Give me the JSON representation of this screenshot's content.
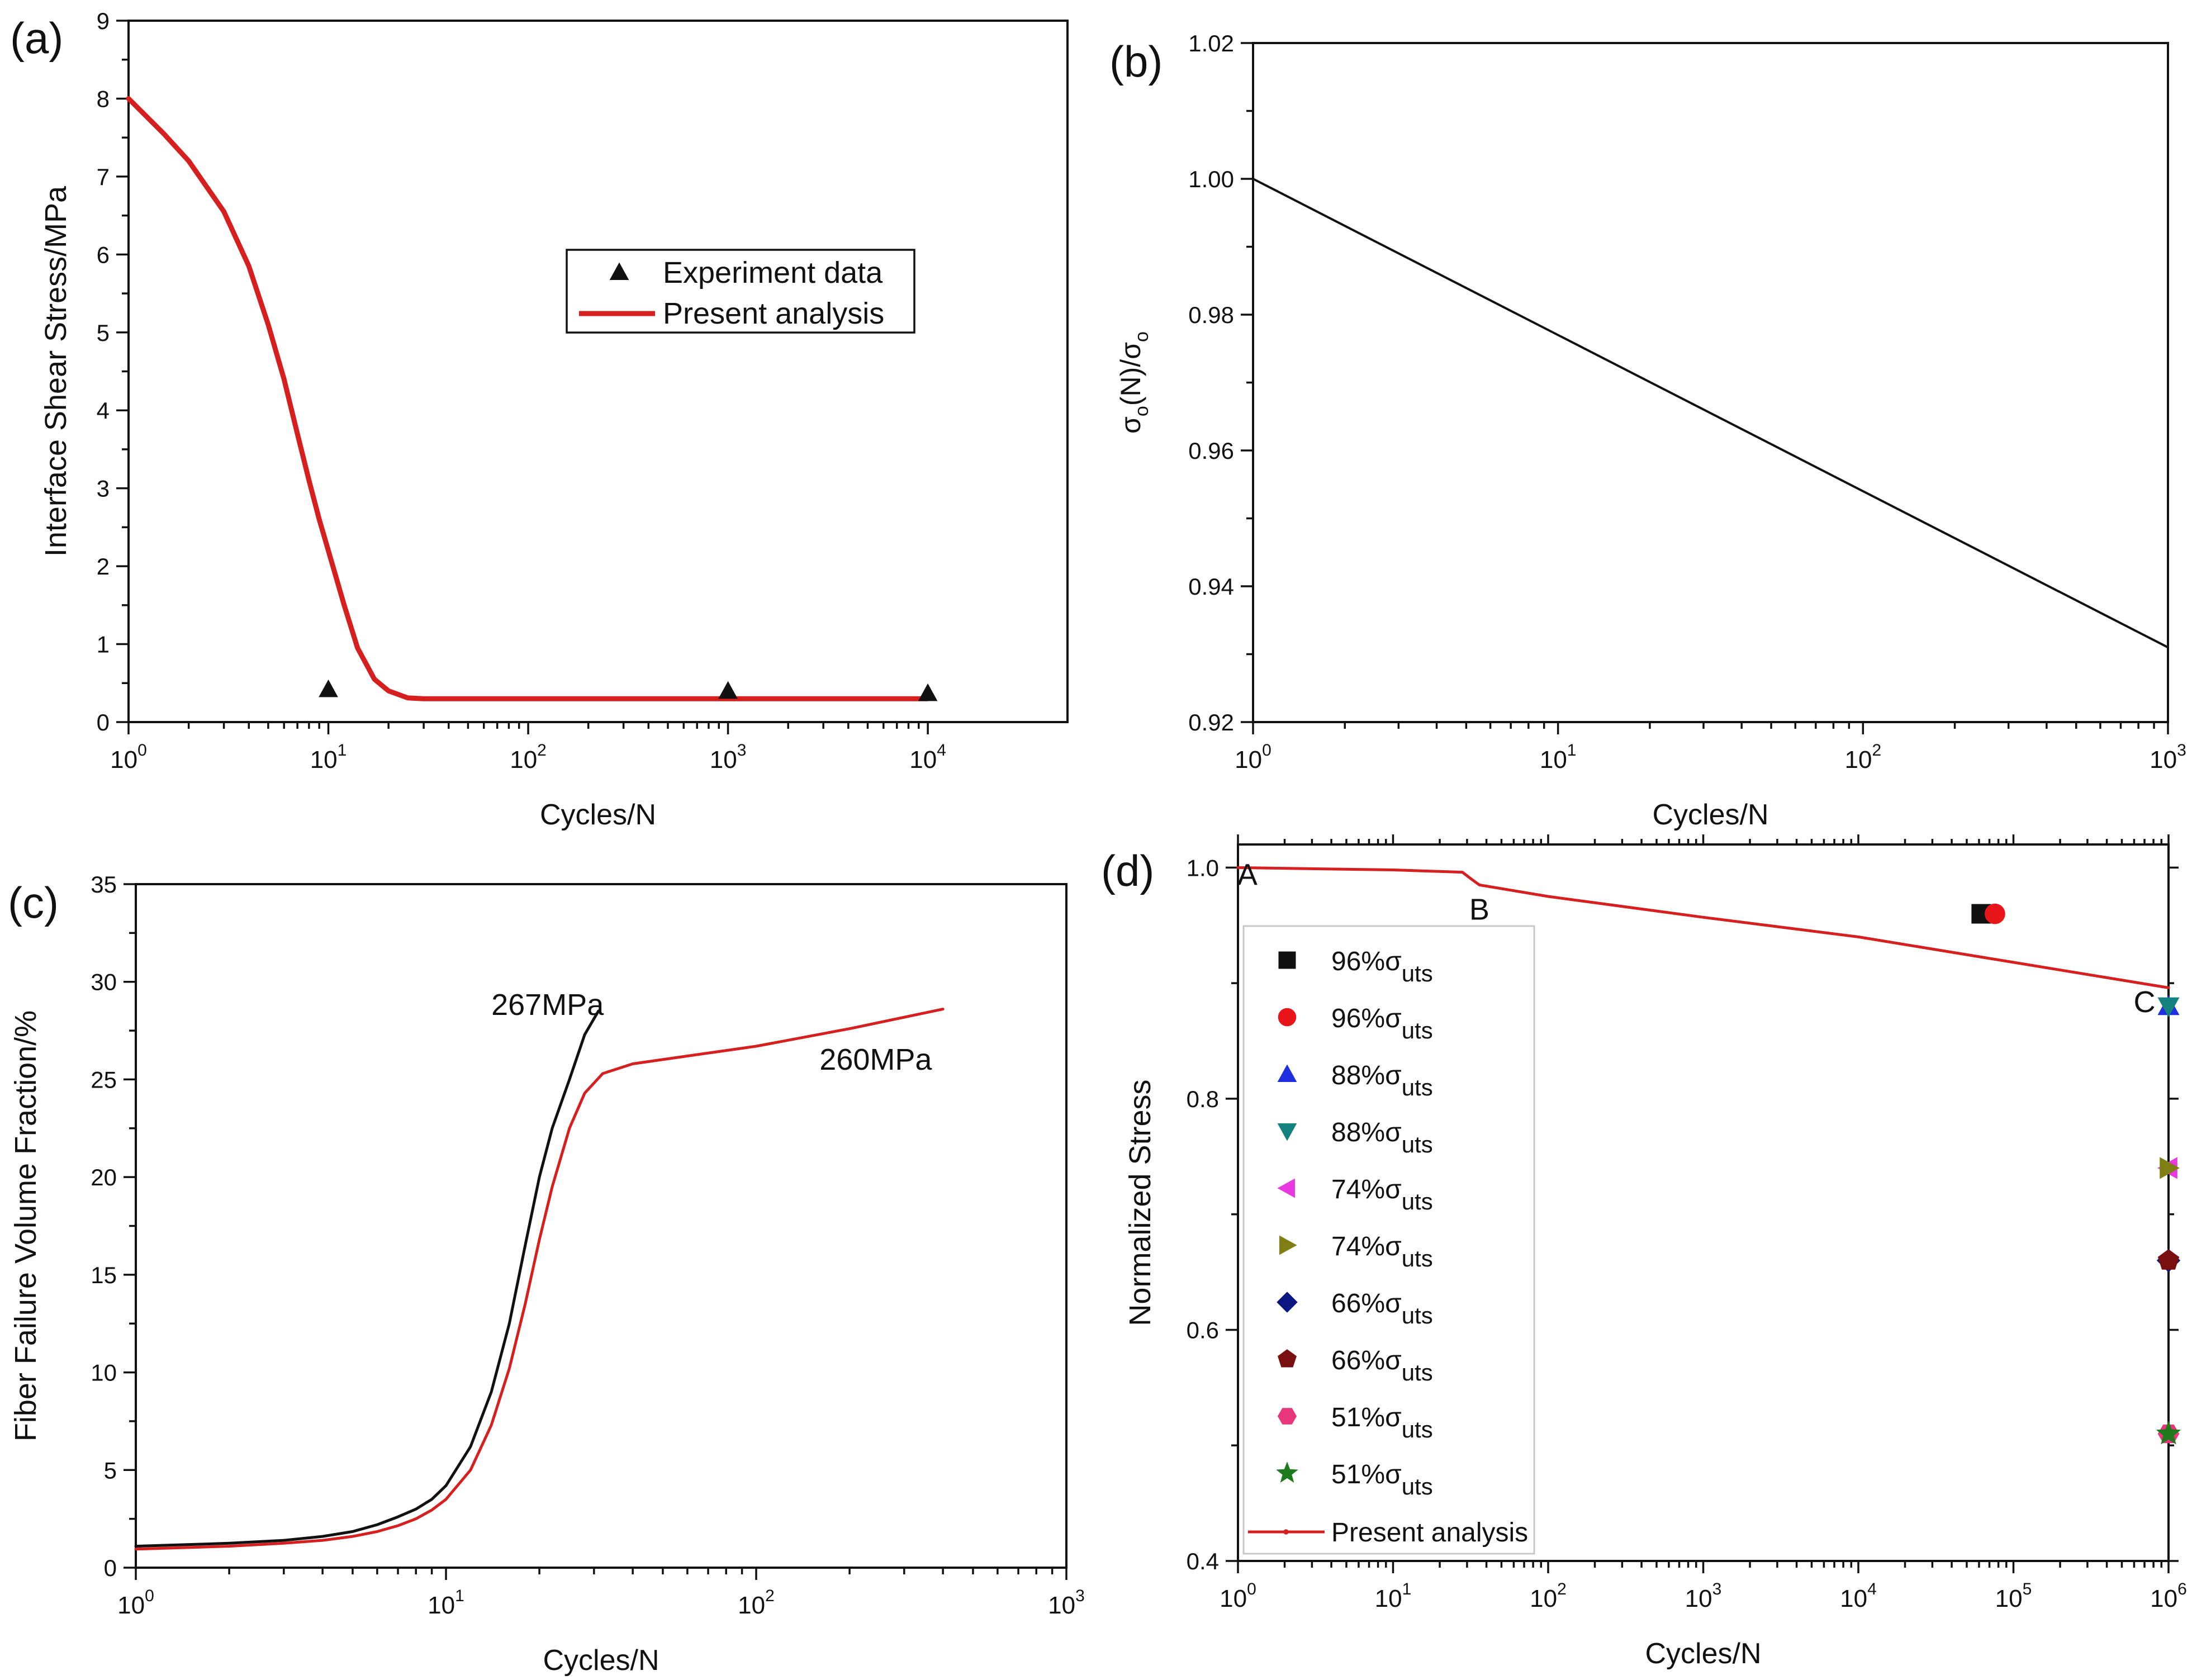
{
  "chart_data": [
    {
      "id": "a",
      "type": "line",
      "panel_label": "(a)",
      "title": "",
      "xlabel": "Cycles/N",
      "ylabel": "Interface Shear Stress/MPa",
      "xscale": "log",
      "xlim": [
        1,
        50000
      ],
      "ylim": [
        0,
        9
      ],
      "xticks": [
        1,
        10,
        100,
        1000,
        10000
      ],
      "xtick_exponents": [
        "0",
        "1",
        "2",
        "3",
        "4"
      ],
      "yticks": [
        0,
        1,
        2,
        3,
        4,
        5,
        6,
        7,
        8,
        9
      ],
      "series": [
        {
          "name": "Experiment data",
          "kind": "scatter",
          "marker": "triangle-up",
          "color": "#111111",
          "x": [
            10,
            1000,
            10000
          ],
          "y": [
            0.42,
            0.4,
            0.37
          ]
        },
        {
          "name": "Present analysis",
          "kind": "line",
          "color": "#d62020",
          "x": [
            1,
            1.5,
            2,
            3,
            4,
            5,
            6,
            7,
            8,
            9,
            10,
            12,
            14,
            17,
            20,
            25,
            30,
            40,
            60,
            100,
            1000,
            10000
          ],
          "y": [
            8.0,
            7.55,
            7.2,
            6.55,
            5.85,
            5.1,
            4.4,
            3.7,
            3.1,
            2.6,
            2.2,
            1.5,
            0.95,
            0.55,
            0.4,
            0.31,
            0.3,
            0.3,
            0.3,
            0.3,
            0.3,
            0.3
          ]
        }
      ],
      "legend": {
        "position": "center-right",
        "entries": [
          "Experiment data",
          "Present analysis"
        ]
      }
    },
    {
      "id": "b",
      "type": "line",
      "panel_label": "(b)",
      "title": "",
      "xlabel": "Cycles/N",
      "ylabel": "σo(N)/σo",
      "ylabel_parts": {
        "sym": "σ",
        "sub": "o",
        "mid": "(N)/",
        "sym2": "σ",
        "sub2": "o"
      },
      "xscale": "log",
      "xlim": [
        1,
        1000
      ],
      "ylim": [
        0.92,
        1.02
      ],
      "xticks": [
        1,
        10,
        100,
        1000
      ],
      "xtick_exponents": [
        "0",
        "1",
        "2",
        "3"
      ],
      "yticks": [
        "0.92",
        "0.94",
        "0.96",
        "0.98",
        "1.00",
        "1.02"
      ],
      "series": [
        {
          "name": "",
          "kind": "line",
          "color": "#111111",
          "x": [
            1,
            1000
          ],
          "y": [
            1.0,
            0.931
          ]
        }
      ]
    },
    {
      "id": "c",
      "type": "line",
      "panel_label": "(c)",
      "title": "",
      "xlabel": "Cycles/N",
      "ylabel": "Fiber Failure Volume Fraction/%",
      "xscale": "log",
      "xlim": [
        1,
        1000
      ],
      "ylim": [
        0,
        35
      ],
      "xticks": [
        1,
        10,
        100,
        1000
      ],
      "xtick_exponents": [
        "0",
        "1",
        "2",
        "3"
      ],
      "yticks": [
        0,
        5,
        10,
        15,
        20,
        25,
        30,
        35
      ],
      "series": [
        {
          "name": "267MPa",
          "kind": "line",
          "color": "#111111",
          "x": [
            1,
            2,
            3,
            4,
            5,
            6,
            7,
            8,
            9,
            10,
            12,
            14,
            16,
            18,
            20,
            22,
            25,
            28,
            31
          ],
          "y": [
            1.1,
            1.25,
            1.4,
            1.6,
            1.85,
            2.2,
            2.6,
            3.0,
            3.5,
            4.2,
            6.2,
            9.0,
            12.5,
            16.5,
            20.0,
            22.5,
            25.0,
            27.3,
            28.5
          ]
        },
        {
          "name": "260MPa",
          "kind": "line",
          "color": "#d62020",
          "x": [
            1,
            2,
            3,
            4,
            5,
            6,
            7,
            8,
            9,
            10,
            12,
            14,
            16,
            18,
            20,
            22,
            25,
            28,
            32,
            40,
            60,
            100,
            200,
            400
          ],
          "y": [
            0.95,
            1.1,
            1.25,
            1.4,
            1.6,
            1.85,
            2.15,
            2.5,
            2.95,
            3.5,
            5.0,
            7.3,
            10.2,
            13.5,
            16.8,
            19.5,
            22.5,
            24.3,
            25.3,
            25.8,
            26.2,
            26.7,
            27.6,
            28.6
          ]
        }
      ],
      "annotations": [
        {
          "text": "267MPa",
          "x": 14,
          "y": 28.3
        },
        {
          "text": "260MPa",
          "x": 160,
          "y": 25.5
        }
      ]
    },
    {
      "id": "d",
      "type": "scatter",
      "panel_label": "(d)",
      "title": "",
      "xlabel": "Cycles/N",
      "ylabel": "Normalized Stress",
      "xscale": "log",
      "xlim": [
        1,
        1000000
      ],
      "ylim": [
        0.4,
        1.02
      ],
      "xticks": [
        1,
        10,
        100,
        1000,
        10000,
        100000,
        1000000
      ],
      "xtick_exponents": [
        "0",
        "1",
        "2",
        "3",
        "4",
        "5",
        "6"
      ],
      "yticks": [
        "0.4",
        "0.6",
        "0.8",
        "1.0"
      ],
      "series": [
        {
          "name": "96%σuts",
          "pct": "96%",
          "marker": "square",
          "color": "#111111",
          "x": [
            62000
          ],
          "y": [
            0.96
          ]
        },
        {
          "name": "96%σuts",
          "pct": "96%",
          "marker": "circle",
          "color": "#e8161b",
          "x": [
            76000
          ],
          "y": [
            0.96
          ]
        },
        {
          "name": "88%σuts",
          "pct": "88%",
          "marker": "triangle-up",
          "color": "#1f2fe0",
          "x": [
            1000000
          ],
          "y": [
            0.88
          ]
        },
        {
          "name": "88%σuts",
          "pct": "88%",
          "marker": "triangle-down",
          "color": "#14837f",
          "x": [
            1000000
          ],
          "y": [
            0.88
          ]
        },
        {
          "name": "74%σuts",
          "pct": "74%",
          "marker": "triangle-left",
          "color": "#e838e0",
          "x": [
            1000000
          ],
          "y": [
            0.74
          ]
        },
        {
          "name": "74%σuts",
          "pct": "74%",
          "marker": "triangle-right",
          "color": "#7f7f14",
          "x": [
            1000000
          ],
          "y": [
            0.74
          ]
        },
        {
          "name": "66%σuts",
          "pct": "66%",
          "marker": "diamond",
          "color": "#0c1680",
          "x": [
            1000000
          ],
          "y": [
            0.66
          ]
        },
        {
          "name": "66%σuts",
          "pct": "66%",
          "marker": "pentagon",
          "color": "#7a0f0f",
          "x": [
            1000000
          ],
          "y": [
            0.66
          ]
        },
        {
          "name": "51%σuts",
          "pct": "51%",
          "marker": "hexagon",
          "color": "#e8367a",
          "x": [
            1000000
          ],
          "y": [
            0.51
          ]
        },
        {
          "name": "51%σuts",
          "pct": "51%",
          "marker": "star",
          "color": "#1d7a1d",
          "x": [
            1000000
          ],
          "y": [
            0.51
          ]
        },
        {
          "name": "Present analysis",
          "kind": "line",
          "marker": "dot",
          "color": "#d62020",
          "x": [
            1,
            10,
            28,
            32,
            36,
            100,
            1000,
            10000,
            100000,
            1000000
          ],
          "y": [
            1.0,
            0.998,
            0.996,
            0.99,
            0.985,
            0.975,
            0.957,
            0.94,
            0.918,
            0.896
          ]
        }
      ],
      "legend": {
        "position": "left",
        "label_prefix_symbol": "σ",
        "label_subscript": "uts"
      },
      "annotations": [
        {
          "text": "A",
          "x": 1.15,
          "y": 0.985
        },
        {
          "text": "B",
          "x": 36,
          "y": 0.955
        },
        {
          "text": "C",
          "x": 700000,
          "y": 0.875
        }
      ]
    }
  ]
}
